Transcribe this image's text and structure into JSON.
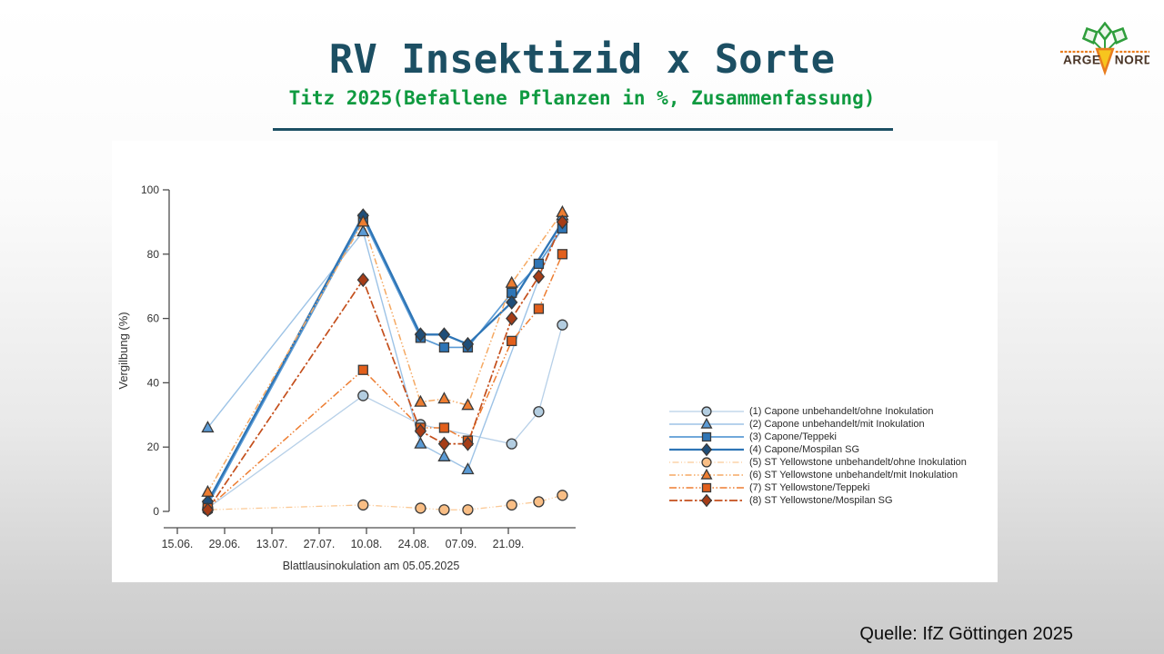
{
  "slide": {
    "title": "RV Insektizid x Sorte",
    "subtitle": "Titz 2025(Befallene Pflanzen in %, Zusammenfassung)",
    "title_color": "#1c4f63",
    "subtitle_color": "#0f9a40",
    "rule_color": "#1c4f63",
    "source": "Quelle: IfZ Göttingen 2025"
  },
  "logo": {
    "line1": "ARGE",
    "line2": "NORD",
    "leaf_color": "#2f9e3c",
    "root_color": "#f7c51e",
    "accent_color": "#e87d1e",
    "text_color": "#4a3526"
  },
  "chart_data": {
    "type": "line",
    "title": "",
    "xlabel": "Blattlausinokulation am 05.05.2025",
    "ylabel": "Vergilbung (%)",
    "ylim": [
      0,
      100
    ],
    "yticks": [
      0,
      20,
      40,
      60,
      80,
      100
    ],
    "x_unit": "days after first x tick (15.06.)",
    "xticks": [
      {
        "day": 0,
        "label": "15.06."
      },
      {
        "day": 14,
        "label": "29.06."
      },
      {
        "day": 28,
        "label": "13.07."
      },
      {
        "day": 42,
        "label": "27.07."
      },
      {
        "day": 56,
        "label": "10.08."
      },
      {
        "day": 70,
        "label": "24.08."
      },
      {
        "day": 84,
        "label": "07.09."
      },
      {
        "day": 98,
        "label": "21.09."
      }
    ],
    "grid": false,
    "legend_position": "center-right",
    "series": [
      {
        "name": "(1) Capone unbehandelt/ohne Inokulation",
        "marker": "circle",
        "line_color": "#b7d0e8",
        "fill": "#b3cde0",
        "dash": "",
        "width": 1.3,
        "points": [
          [
            9,
            1
          ],
          [
            55,
            36
          ],
          [
            72,
            27
          ],
          [
            99,
            21
          ],
          [
            107,
            31
          ],
          [
            114,
            58
          ]
        ]
      },
      {
        "name": "(2) Capone unbehandelt/mit Inokulation",
        "marker": "triangle",
        "line_color": "#9dc3e6",
        "fill": "#5b9bd5",
        "dash": "",
        "width": 1.4,
        "points": [
          [
            9,
            26
          ],
          [
            55,
            87
          ],
          [
            72,
            21
          ],
          [
            79,
            17
          ],
          [
            86,
            13
          ],
          [
            114,
            92
          ]
        ]
      },
      {
        "name": "(3) Capone/Teppeki",
        "marker": "square",
        "line_color": "#5b9bd5",
        "fill": "#2e75b6",
        "dash": "",
        "width": 1.7,
        "points": [
          [
            9,
            2
          ],
          [
            55,
            91
          ],
          [
            72,
            54
          ],
          [
            79,
            51
          ],
          [
            86,
            51
          ],
          [
            99,
            68
          ],
          [
            107,
            77
          ],
          [
            114,
            88
          ]
        ]
      },
      {
        "name": "(4) Capone/Mospilan SG",
        "marker": "diamond",
        "line_color": "#2e75b6",
        "fill": "#1f4e79",
        "dash": "",
        "width": 2.3,
        "points": [
          [
            9,
            3
          ],
          [
            55,
            92
          ],
          [
            72,
            55
          ],
          [
            79,
            55
          ],
          [
            86,
            52
          ],
          [
            99,
            65
          ],
          [
            114,
            90
          ]
        ]
      },
      {
        "name": "(5) ST Yellowstone unbehandelt/ohne Inokulation",
        "marker": "circle",
        "line_color": "#fbc996",
        "fill": "#f9be85",
        "dash": "1 2.5 7 2.5 1 2.5",
        "width": 1.3,
        "points": [
          [
            9,
            0.5
          ],
          [
            55,
            2
          ],
          [
            72,
            1
          ],
          [
            79,
            0.5
          ],
          [
            86,
            0.5
          ],
          [
            99,
            2
          ],
          [
            107,
            3
          ],
          [
            114,
            5
          ]
        ]
      },
      {
        "name": "(6) ST Yellowstone unbehandelt/mit Inokulation",
        "marker": "triangle",
        "line_color": "#f5a963",
        "fill": "#ed7d31",
        "dash": "7 2.5 1.5 2.5 1.5 2.5",
        "width": 1.5,
        "points": [
          [
            9,
            6
          ],
          [
            55,
            90
          ],
          [
            72,
            34
          ],
          [
            79,
            35
          ],
          [
            86,
            33
          ],
          [
            99,
            71
          ],
          [
            114,
            93
          ]
        ]
      },
      {
        "name": "(7) ST Yellowstone/Teppeki",
        "marker": "square",
        "line_color": "#ed7d31",
        "fill": "#e25f1b",
        "dash": "8 2.5 1.5 2.5 1.5 2.5",
        "width": 1.5,
        "points": [
          [
            9,
            1
          ],
          [
            55,
            44
          ],
          [
            72,
            26
          ],
          [
            79,
            26
          ],
          [
            86,
            22
          ],
          [
            99,
            53
          ],
          [
            107,
            63
          ],
          [
            114,
            80
          ]
        ]
      },
      {
        "name": "(8) ST Yellowstone/Mospilan SG",
        "marker": "diamond",
        "line_color": "#c44f1c",
        "fill": "#a63d17",
        "dash": "9 2.5 2.5 2.5",
        "width": 1.7,
        "points": [
          [
            9,
            0.5
          ],
          [
            55,
            72
          ],
          [
            72,
            25
          ],
          [
            79,
            21
          ],
          [
            86,
            21
          ],
          [
            99,
            60
          ],
          [
            107,
            73
          ],
          [
            114,
            90
          ]
        ]
      }
    ]
  }
}
